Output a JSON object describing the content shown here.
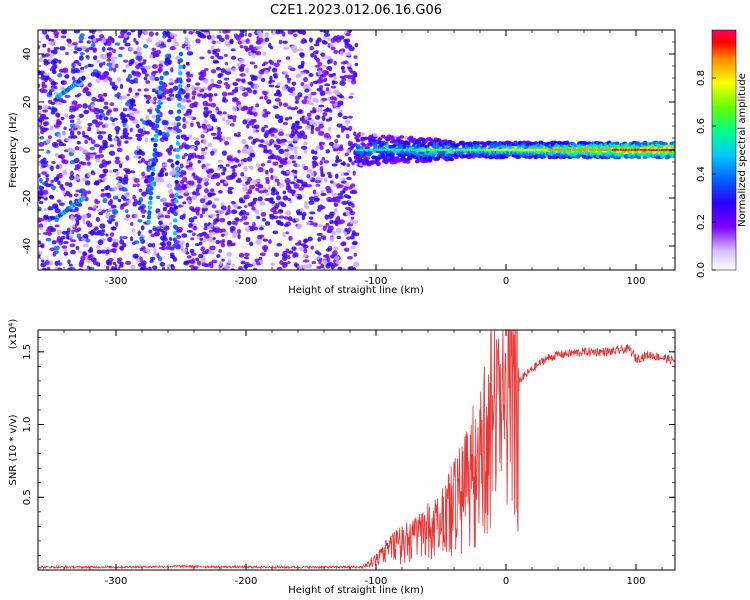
{
  "figure_title": "C2E1.2023.012.06.16.G06",
  "chart_data": [
    {
      "type": "heatmap",
      "title": "C2E1.2023.012.06.16.G06",
      "xlabel": "Height of straight line (km)",
      "ylabel": "Frequency (Hz)",
      "xlim": [
        -360,
        130
      ],
      "ylim": [
        -50,
        50
      ],
      "x_ticks": [
        -300,
        -200,
        -100,
        0,
        100
      ],
      "y_ticks": [
        -40,
        -20,
        0,
        20,
        40
      ],
      "colorbar": {
        "label": "Normalized spectral amplitude",
        "range": [
          0.0,
          1.0
        ],
        "ticks": [
          0.0,
          0.2,
          0.4,
          0.6,
          0.8
        ],
        "colormap": [
          "#ffffff",
          "#c9a6ff",
          "#7a00ff",
          "#2a00ff",
          "#0066ff",
          "#00ccff",
          "#00ff88",
          "#66ff00",
          "#ffff00",
          "#ff8800",
          "#ff0000",
          "#ff0066"
        ]
      },
      "features": {
        "noise_region_x": [
          -360,
          -115
        ],
        "signal_center_hz": 0,
        "signal_start_x": -115,
        "streaks": [
          {
            "x": [
              -345,
              -325
            ],
            "y": [
              22,
              30
            ]
          },
          {
            "x": [
              -345,
              -325
            ],
            "y": [
              -28,
              -20
            ]
          },
          {
            "x": [
              -275,
              -265
            ],
            "y": [
              -30,
              30
            ]
          },
          {
            "x": [
              -255,
              -250
            ],
            "y": [
              -40,
              40
            ]
          }
        ]
      }
    },
    {
      "type": "line",
      "title": "",
      "xlabel": "Height of straight line (km)",
      "ylabel": "SNR (10 * v/v)",
      "y_scale_label": "(x10⁴)",
      "xlim": [
        -360,
        130
      ],
      "ylim": [
        0,
        1.65
      ],
      "x_ticks": [
        -300,
        -200,
        -100,
        0,
        100
      ],
      "y_ticks": [
        0.5,
        1.0,
        1.5
      ],
      "y_tick_labels": [
        "0.5",
        "1.0",
        "1.5"
      ],
      "series": [
        {
          "color": "#ee3333",
          "x": [
            -360,
            -300,
            -250,
            -200,
            -150,
            -110,
            -100,
            -90,
            -70,
            -50,
            -40,
            -30,
            -20,
            -15,
            -10,
            0,
            10,
            20,
            30,
            40,
            60,
            80,
            95,
            100,
            110,
            130
          ],
          "y": [
            0.02,
            0.02,
            0.025,
            0.02,
            0.02,
            0.02,
            0.08,
            0.15,
            0.25,
            0.35,
            0.5,
            0.65,
            0.85,
            1.0,
            1.1,
            1.2,
            1.3,
            1.38,
            1.45,
            1.48,
            1.5,
            1.5,
            1.52,
            1.45,
            1.48,
            1.44
          ]
        }
      ]
    }
  ]
}
